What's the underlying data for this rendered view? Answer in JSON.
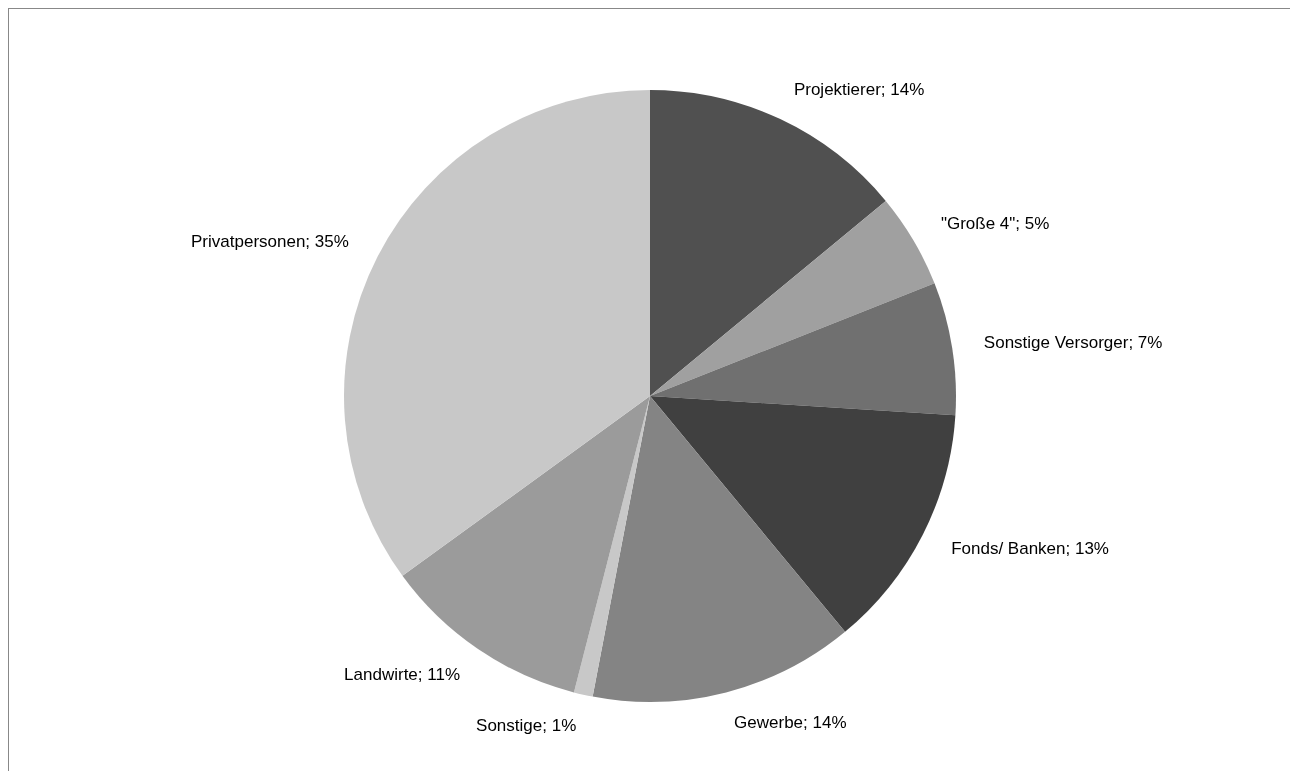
{
  "chart_data": {
    "type": "pie",
    "categories": [
      "Projektierer",
      "\"Große 4\"",
      "Sonstige Versorger",
      "Fonds/ Banken",
      "Gewerbe",
      "Sonstige",
      "Landwirte",
      "Privatpersonen"
    ],
    "values": [
      14,
      5,
      7,
      13,
      14,
      1,
      11,
      35
    ],
    "colors": [
      "#505050",
      "#a0a0a0",
      "#707070",
      "#404040",
      "#848484",
      "#c8c8c8",
      "#9b9b9b",
      "#c8c8c8"
    ],
    "value_labels": [
      "14%",
      "5%",
      "7%",
      "13%",
      "14%",
      "1%",
      "11%",
      "35%"
    ],
    "legend": false
  }
}
